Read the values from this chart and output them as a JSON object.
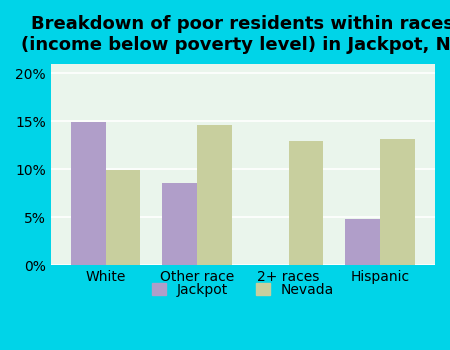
{
  "title": "Breakdown of poor residents within races\n(income below poverty level) in Jackpot, NV",
  "categories": [
    "White",
    "Other race",
    "2+ races",
    "Hispanic"
  ],
  "jackpot_values": [
    14.9,
    8.6,
    0,
    4.8
  ],
  "nevada_values": [
    9.9,
    14.6,
    12.9,
    13.1
  ],
  "jackpot_color": "#b09ec9",
  "nevada_color": "#c8cf9e",
  "background_outer": "#00d4e8",
  "background_plot": "#eaf5ec",
  "ylim": [
    0,
    21
  ],
  "yticks": [
    0,
    5,
    10,
    15,
    20
  ],
  "ytick_labels": [
    "0%",
    "5%",
    "10%",
    "15%",
    "20%"
  ],
  "title_fontsize": 13,
  "legend_labels": [
    "Jackpot",
    "Nevada"
  ],
  "bar_width": 0.38,
  "grid_color": "#ffffff"
}
